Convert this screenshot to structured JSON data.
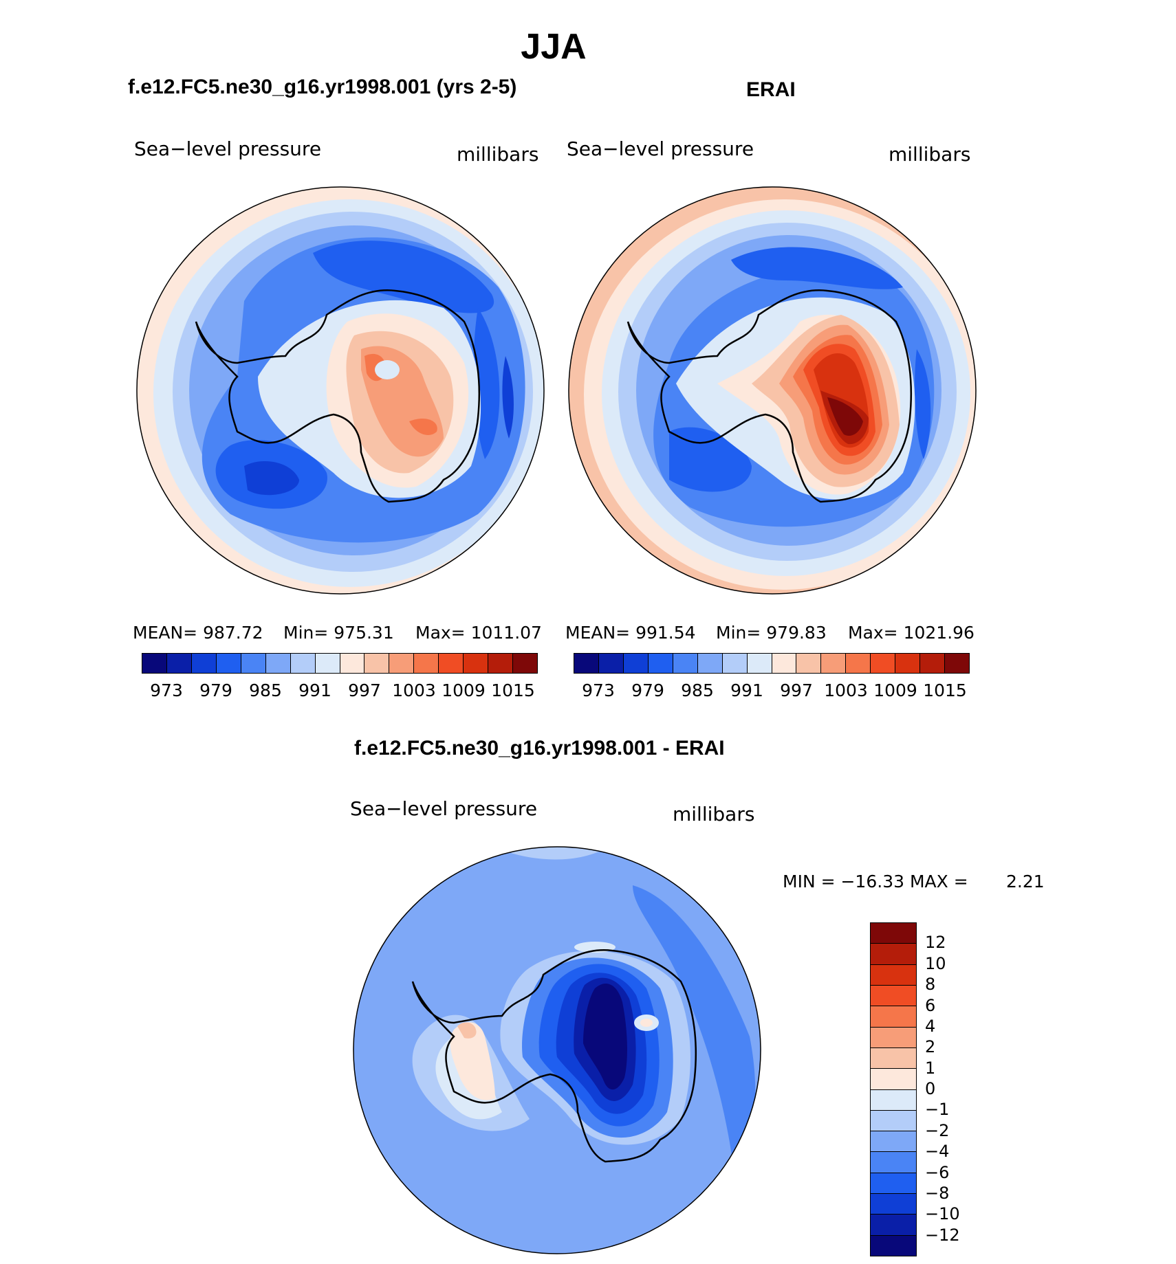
{
  "title": "JJA",
  "palette_abs": [
    "#08087a",
    "#0a1fa8",
    "#0f3fd6",
    "#1f5ff0",
    "#4a84f5",
    "#7ea8f7",
    "#b3cdf9",
    "#dceaf9",
    "#fde8dc",
    "#f8c3a8",
    "#f79d78",
    "#f5764a",
    "#f04d24",
    "#d8320f",
    "#b41d0a",
    "#7e0808"
  ],
  "palette_diff": [
    "#7e0808",
    "#b41d0a",
    "#d8320f",
    "#f04d24",
    "#f5764a",
    "#f79d78",
    "#f8c3a8",
    "#fde8dc",
    "#dceaf9",
    "#b3cdf9",
    "#7ea8f7",
    "#4a84f5",
    "#1f5ff0",
    "#0f3fd6",
    "#0a1fa8",
    "#08087a"
  ],
  "panels": {
    "model": {
      "title": "f.e12.FC5.ne30_g16.yr1998.001 (yrs 2-5)",
      "left_label": "Sea−level pressure",
      "right_label": "millibars",
      "mean_label": "MEAN= 987.72",
      "min_label": "Min= 975.31",
      "max_label": "Max= 1011.07",
      "ticks": [
        "973",
        "979",
        "985",
        "991",
        "997",
        "1003",
        "1009",
        "1015"
      ]
    },
    "obs": {
      "title": "ERAI",
      "left_label": "Sea−level pressure",
      "right_label": "millibars",
      "mean_label": "MEAN= 991.54",
      "min_label": "Min= 979.83",
      "max_label": "Max= 1021.96",
      "ticks": [
        "973",
        "979",
        "985",
        "991",
        "997",
        "1003",
        "1009",
        "1015"
      ]
    },
    "diff": {
      "title": "f.e12.FC5.ne30_g16.yr1998.001 - ERAI",
      "left_label": "Sea−level pressure",
      "right_label": "millibars",
      "minmax_label": "MIN = −16.33 MAX =",
      "max_value": "2.21",
      "ticks": [
        "12",
        "10",
        "8",
        "6",
        "4",
        "2",
        "1",
        "0",
        "−1",
        "−2",
        "−4",
        "−6",
        "−8",
        "−10",
        "−12"
      ]
    }
  }
}
